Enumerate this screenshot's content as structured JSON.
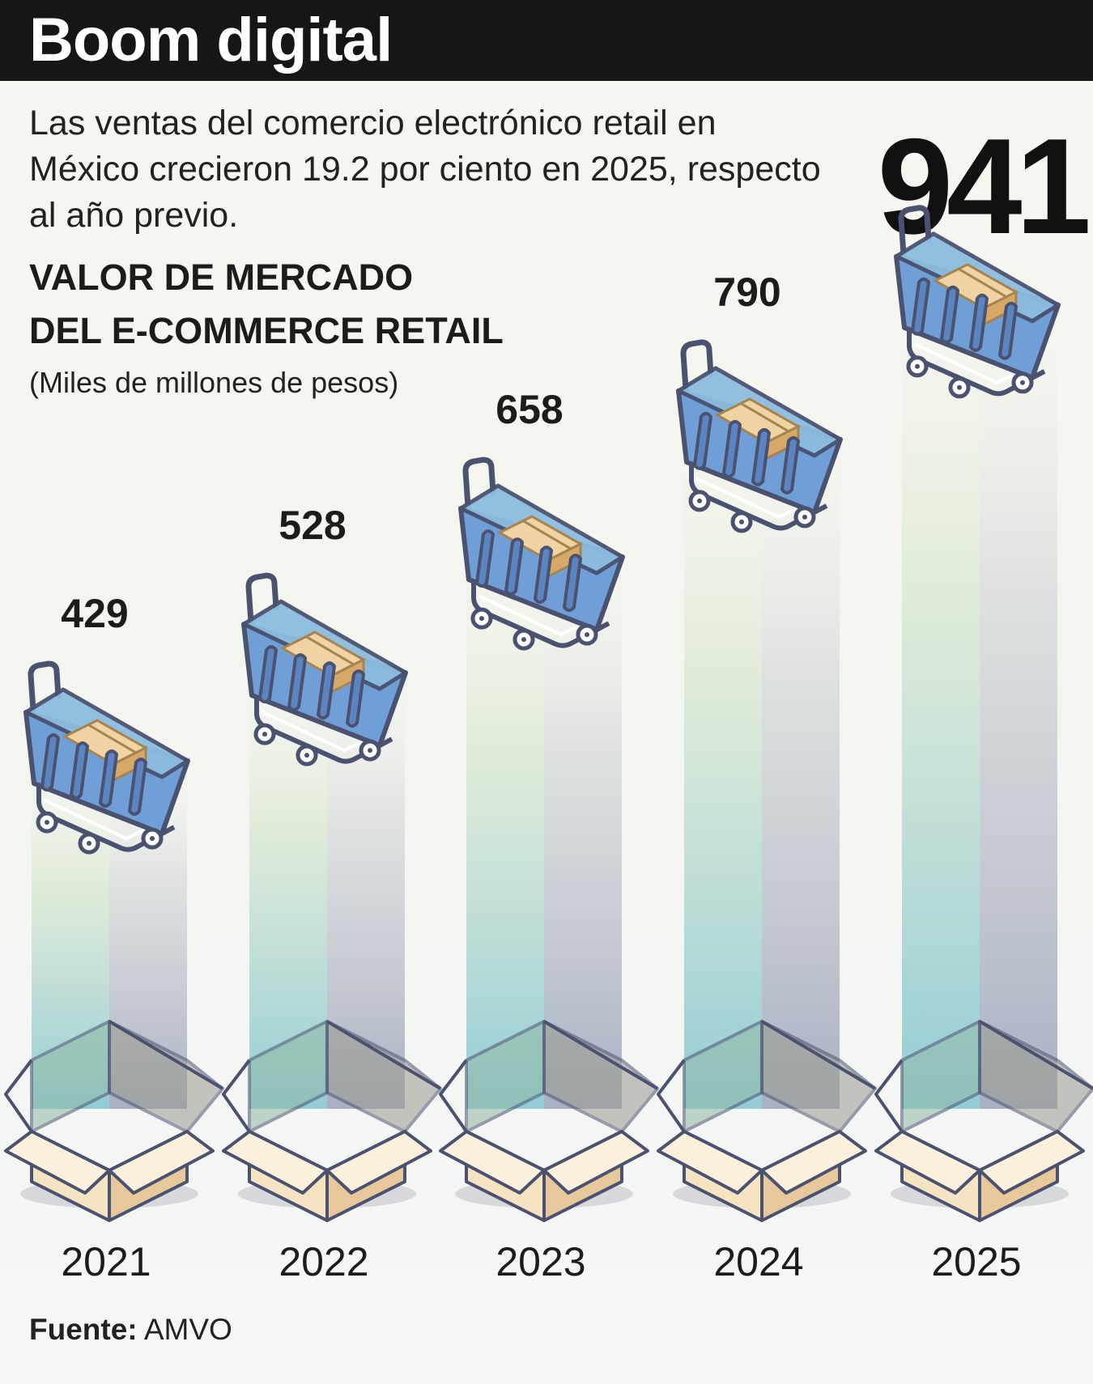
{
  "header": {
    "title": "Boom digital"
  },
  "intro": "Las ventas del comercio electrónico retail en México crecieron 19.2 por ciento en 2025, respecto al año previo.",
  "highlight": "941",
  "chart_title_line1": "VALOR DE MERCADO",
  "chart_title_line2": "DEL E-COMMERCE RETAIL",
  "units": "(Miles de millones de pesos)",
  "source": {
    "label": "Fuente:",
    "name": "AMVO"
  },
  "colors": {
    "cart_fill": "#6f9fd6",
    "cart_outline": "#4a5270",
    "box_fill": "#f6e3c2",
    "box_dark": "#e7c89a",
    "beam": "#9ccfd8"
  },
  "chart_data": {
    "type": "bar",
    "title": "VALOR DE MERCADO DEL E-COMMERCE RETAIL",
    "ylabel": "(Miles de millones de pesos)",
    "categories": [
      "2021",
      "2022",
      "2023",
      "2024",
      "2025"
    ],
    "values": [
      429,
      528,
      658,
      790,
      941
    ],
    "data_labels": [
      "429",
      "528",
      "658",
      "790",
      ""
    ],
    "grid": false,
    "legend": "none"
  }
}
